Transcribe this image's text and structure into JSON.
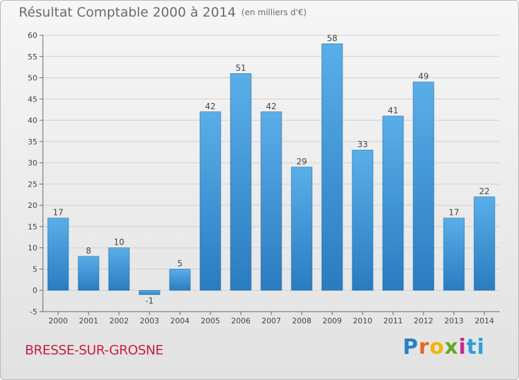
{
  "title": "Résultat Comptable 2000 à 2014",
  "subtitle": "(en milliers d'€)",
  "commune": "BRESSE-SUR-GROSNE",
  "logo": [
    "P",
    "r",
    "o",
    "x",
    "i",
    "ti"
  ],
  "colors": {
    "bar_top": "#5aaee8",
    "bar_bottom": "#2a7cc0",
    "grid": "#d0d0d0",
    "axis": "#666666"
  },
  "chart_data": {
    "type": "bar",
    "title": "Résultat Comptable 2000 à 2014",
    "subtitle": "(en milliers d'€)",
    "categories": [
      "2000",
      "2001",
      "2002",
      "2003",
      "2004",
      "2005",
      "2006",
      "2007",
      "2008",
      "2009",
      "2010",
      "2011",
      "2012",
      "2013",
      "2014"
    ],
    "values": [
      17,
      8,
      10,
      -1,
      5,
      42,
      51,
      42,
      29,
      58,
      33,
      41,
      49,
      17,
      22
    ],
    "value_labels": [
      "17",
      "8",
      "10",
      "-1",
      "5",
      "42",
      "51",
      "42",
      "29",
      "58",
      "33",
      "41",
      "49",
      "17",
      "22"
    ],
    "ylim": [
      -5,
      60
    ],
    "yticks": [
      -5,
      0,
      5,
      10,
      15,
      20,
      25,
      30,
      35,
      40,
      45,
      50,
      55,
      60
    ],
    "xlabel": "",
    "ylabel": "",
    "grid": true
  }
}
